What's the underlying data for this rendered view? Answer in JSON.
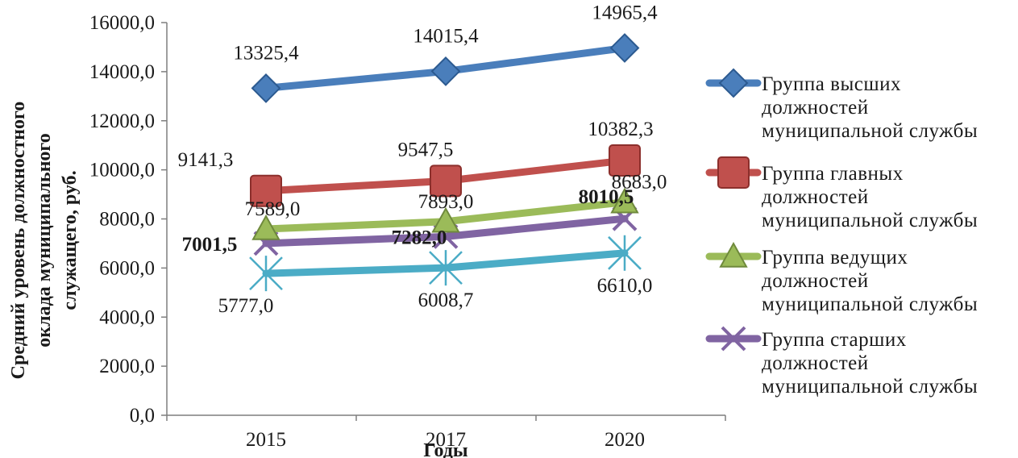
{
  "chart_data": {
    "type": "line",
    "categories": [
      "2015",
      "2017",
      "2020"
    ],
    "xlabel": "Годы",
    "ylabel": [
      "Средний уровень должностного",
      "оклада муниципального",
      "служащего, руб."
    ],
    "ylim": [
      0,
      16000
    ],
    "y_ticks": [
      0,
      2000,
      4000,
      6000,
      8000,
      10000,
      12000,
      14000,
      16000
    ],
    "y_tick_labels": [
      "0,0",
      "2000,0",
      "4000,0",
      "6000,0",
      "8000,0",
      "10000,0",
      "12000,0",
      "14000,0",
      "16000,0"
    ],
    "grid": false,
    "legend_position": "right",
    "series": [
      {
        "name": [
          "Группа высших",
          "должностей",
          "муниципальной службы"
        ],
        "values": [
          13325.4,
          14015.4,
          14965.4
        ],
        "labels": [
          "13325,4",
          "14015,4",
          "14965,4"
        ],
        "label_bold": [
          false,
          false,
          false
        ],
        "color": "#4a7ebb",
        "marker": "diamond"
      },
      {
        "name": [
          "Группа главных",
          "должностей",
          "муниципальной службы"
        ],
        "values": [
          9141.3,
          9547.5,
          10382.3
        ],
        "labels": [
          "9141,3",
          "9547,5",
          "10382,3"
        ],
        "label_bold": [
          false,
          false,
          false
        ],
        "color": "#c0504d",
        "marker": "square"
      },
      {
        "name": [
          "Группа ведущих",
          "должностей",
          "муниципальной службы"
        ],
        "values": [
          7589.0,
          7893.0,
          8683.0
        ],
        "labels": [
          "7589,0",
          "7893,0",
          "8683,0"
        ],
        "label_bold": [
          false,
          false,
          false
        ],
        "color": "#9bbb59",
        "marker": "triangle"
      },
      {
        "name": [
          "Группа старших",
          "должностей",
          "муниципальной службы"
        ],
        "values": [
          7001.5,
          7282.0,
          8010.5
        ],
        "labels": [
          "7001,5",
          "7282,0",
          "8010,5"
        ],
        "label_bold": [
          true,
          true,
          true
        ],
        "color": "#8064a2",
        "marker": "x"
      },
      {
        "values": [
          5777.0,
          6008.7,
          6610.0
        ],
        "labels": [
          "5777,0",
          "6008,7",
          "6610,0"
        ],
        "label_bold": [
          false,
          false,
          false
        ],
        "color": "#4bacc6",
        "marker": "star"
      }
    ]
  }
}
